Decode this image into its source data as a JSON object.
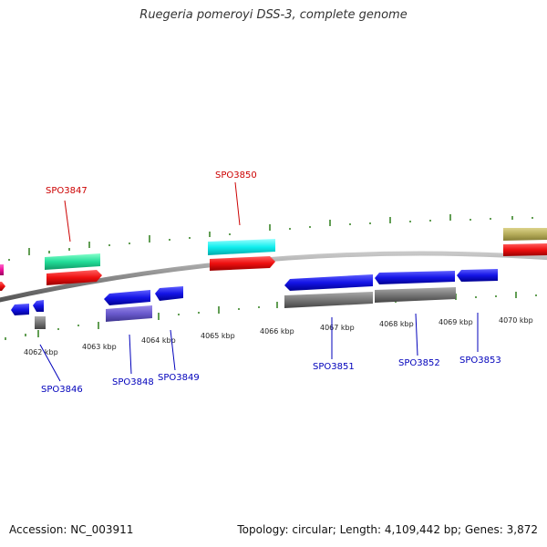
{
  "title": "Ruegeria pomeroyi DSS-3, complete genome",
  "footer": {
    "accession": "Accession: NC_003911",
    "stats": "Topology: circular; Length: 4,109,442 bp; Genes: 3,872"
  },
  "colors": {
    "backbone": "#8c8c8c",
    "tick": "#2e7d1a",
    "label_top": "#cc0000",
    "label_bottom": "#0000bb",
    "gene_blue": "#1414e6",
    "gene_red": "#ee0f0f",
    "gene_gray": "#777777",
    "gene_green": "#22dd99",
    "gene_cyan": "#11eeee",
    "gene_purple": "#6a5acd",
    "gene_olive": "#b5ac5a",
    "gene_magenta": "#ee1199"
  },
  "kbp_labels": [
    "4062 kbp",
    "4063 kbp",
    "4064 kbp",
    "4065 kbp",
    "4066 kbp",
    "4067 kbp",
    "4068 kbp",
    "4069 kbp",
    "4070 kbp"
  ],
  "gene_labels_top": [
    "SPO3847",
    "SPO3850"
  ],
  "gene_labels_bottom": [
    "SPO3846",
    "SPO3848",
    "SPO3849",
    "SPO3851",
    "SPO3852",
    "SPO3853"
  ]
}
